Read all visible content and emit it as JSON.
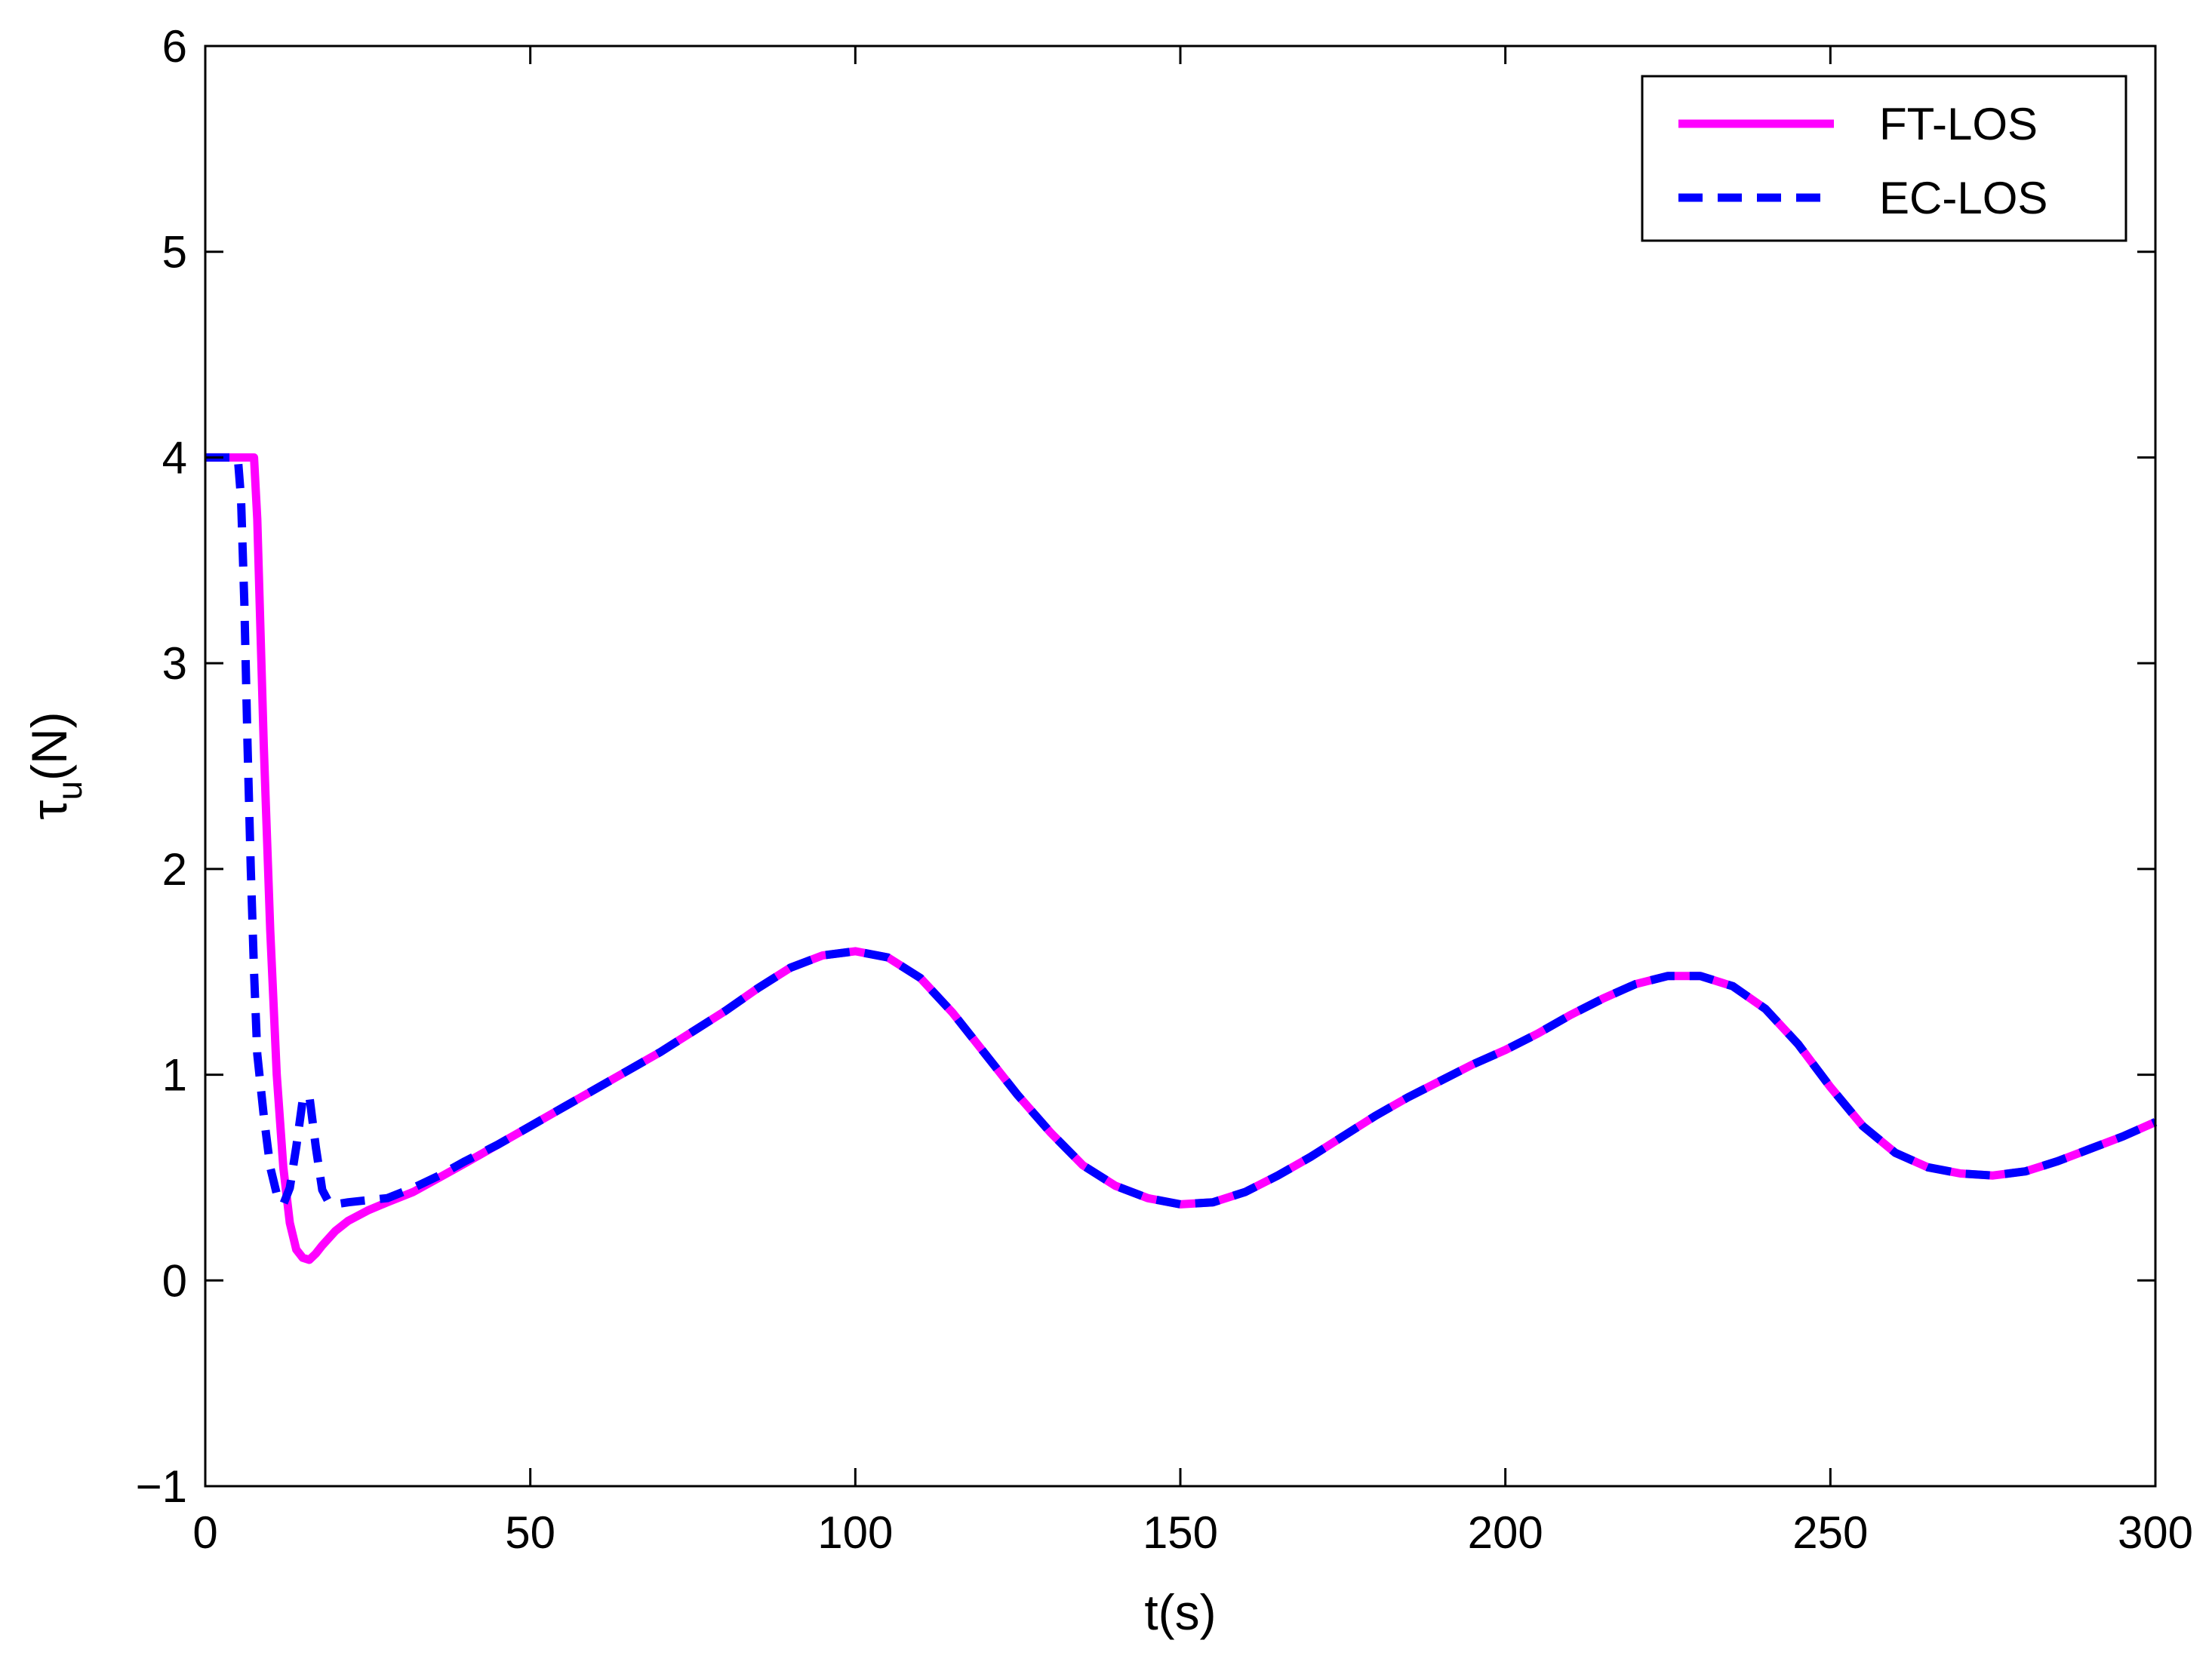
{
  "chart_data": {
    "type": "line",
    "xlabel": "t(s)",
    "ylabel_main": "τ",
    "ylabel_sub": "u",
    "ylabel_unit": "(N)",
    "xlim": [
      0,
      300
    ],
    "ylim": [
      -1,
      6
    ],
    "xticks": [
      0,
      50,
      100,
      150,
      200,
      250,
      300
    ],
    "yticks": [
      -1,
      0,
      1,
      2,
      3,
      4,
      5,
      6
    ],
    "xtick_labels": [
      "0",
      "50",
      "100",
      "150",
      "200",
      "250",
      "300"
    ],
    "ytick_labels": [
      "−1",
      "0",
      "1",
      "2",
      "3",
      "4",
      "5",
      "6"
    ],
    "grid": false,
    "legend_position": "top-right",
    "series": [
      {
        "name": "FT-LOS",
        "color": "#ff00ff",
        "style": "solid",
        "x": [
          0,
          7.5,
          8,
          9,
          10,
          11,
          12,
          13,
          14,
          15,
          16,
          17,
          18,
          20,
          22,
          25,
          28,
          32,
          36,
          40,
          45,
          50,
          55,
          60,
          65,
          70,
          75,
          80,
          85,
          90,
          95,
          100,
          105,
          110,
          115,
          120,
          125,
          130,
          135,
          140,
          145,
          150,
          155,
          160,
          165,
          170,
          175,
          180,
          185,
          190,
          195,
          200,
          205,
          210,
          215,
          220,
          225,
          230,
          235,
          240,
          245,
          250,
          255,
          260,
          265,
          270,
          275,
          280,
          285,
          290,
          295,
          300
        ],
        "y": [
          4.0,
          4.0,
          3.7,
          2.6,
          1.7,
          1.0,
          0.55,
          0.28,
          0.15,
          0.11,
          0.1,
          0.13,
          0.17,
          0.24,
          0.29,
          0.34,
          0.38,
          0.43,
          0.5,
          0.57,
          0.66,
          0.75,
          0.84,
          0.93,
          1.02,
          1.11,
          1.21,
          1.31,
          1.42,
          1.52,
          1.58,
          1.6,
          1.57,
          1.47,
          1.3,
          1.1,
          0.9,
          0.72,
          0.56,
          0.46,
          0.4,
          0.37,
          0.38,
          0.43,
          0.51,
          0.6,
          0.7,
          0.8,
          0.89,
          0.97,
          1.05,
          1.12,
          1.2,
          1.29,
          1.37,
          1.44,
          1.48,
          1.48,
          1.43,
          1.32,
          1.15,
          0.94,
          0.75,
          0.62,
          0.55,
          0.52,
          0.51,
          0.53,
          0.58,
          0.64,
          0.7,
          0.77
        ]
      },
      {
        "name": "EC-LOS",
        "color": "#0000ff",
        "style": "dashed",
        "x": [
          0,
          5,
          5.5,
          6,
          6.5,
          7,
          7.5,
          8,
          9,
          10,
          11,
          12,
          13,
          14,
          15,
          16,
          17,
          18,
          19,
          20,
          22,
          25,
          28,
          32,
          36,
          40,
          45,
          50,
          55,
          60,
          65,
          70,
          75,
          80,
          85,
          90,
          95,
          100,
          105,
          110,
          115,
          120,
          125,
          130,
          135,
          140,
          145,
          150,
          155,
          160,
          165,
          170,
          175,
          180,
          185,
          190,
          195,
          200,
          205,
          210,
          215,
          220,
          225,
          230,
          235,
          240,
          245,
          250,
          255,
          260,
          265,
          270,
          275,
          280,
          285,
          290,
          295,
          300
        ],
        "y": [
          4.0,
          4.0,
          3.8,
          3.3,
          2.6,
          2.0,
          1.5,
          1.1,
          0.8,
          0.55,
          0.42,
          0.37,
          0.45,
          0.65,
          0.88,
          0.9,
          0.65,
          0.44,
          0.38,
          0.37,
          0.38,
          0.39,
          0.4,
          0.45,
          0.51,
          0.58,
          0.66,
          0.75,
          0.84,
          0.93,
          1.02,
          1.11,
          1.21,
          1.31,
          1.42,
          1.52,
          1.58,
          1.6,
          1.57,
          1.47,
          1.3,
          1.1,
          0.9,
          0.72,
          0.56,
          0.46,
          0.4,
          0.37,
          0.38,
          0.43,
          0.51,
          0.6,
          0.7,
          0.8,
          0.89,
          0.97,
          1.05,
          1.12,
          1.2,
          1.29,
          1.37,
          1.44,
          1.48,
          1.48,
          1.43,
          1.32,
          1.15,
          0.94,
          0.75,
          0.62,
          0.55,
          0.52,
          0.51,
          0.53,
          0.58,
          0.64,
          0.7,
          0.77
        ]
      }
    ]
  }
}
